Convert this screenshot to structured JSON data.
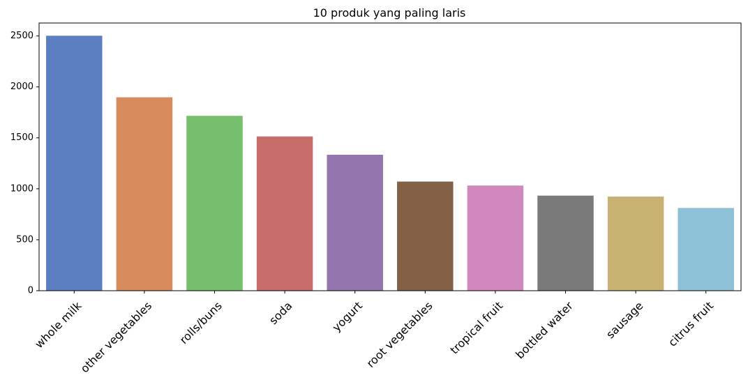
{
  "chart_data": {
    "type": "bar",
    "title": "10 produk yang paling laris",
    "xlabel": "",
    "ylabel": "",
    "categories": [
      "whole milk",
      "other vegetables",
      "rolls/buns",
      "soda",
      "yogurt",
      "root vegetables",
      "tropical fruit",
      "bottled water",
      "sausage",
      "citrus fruit"
    ],
    "values": [
      2502,
      1898,
      1716,
      1514,
      1334,
      1071,
      1032,
      933,
      924,
      812
    ],
    "colors": [
      "#5a7ec0",
      "#d68a5e",
      "#75bf6f",
      "#c66d6c",
      "#9575ad",
      "#826146",
      "#d189bd",
      "#7a7a7a",
      "#c7b173",
      "#8ec1d7"
    ],
    "ylim": [
      0,
      2627
    ],
    "yticks": [
      0,
      500,
      1000,
      1500,
      2000,
      2500
    ],
    "grid": false,
    "legend": "none"
  }
}
